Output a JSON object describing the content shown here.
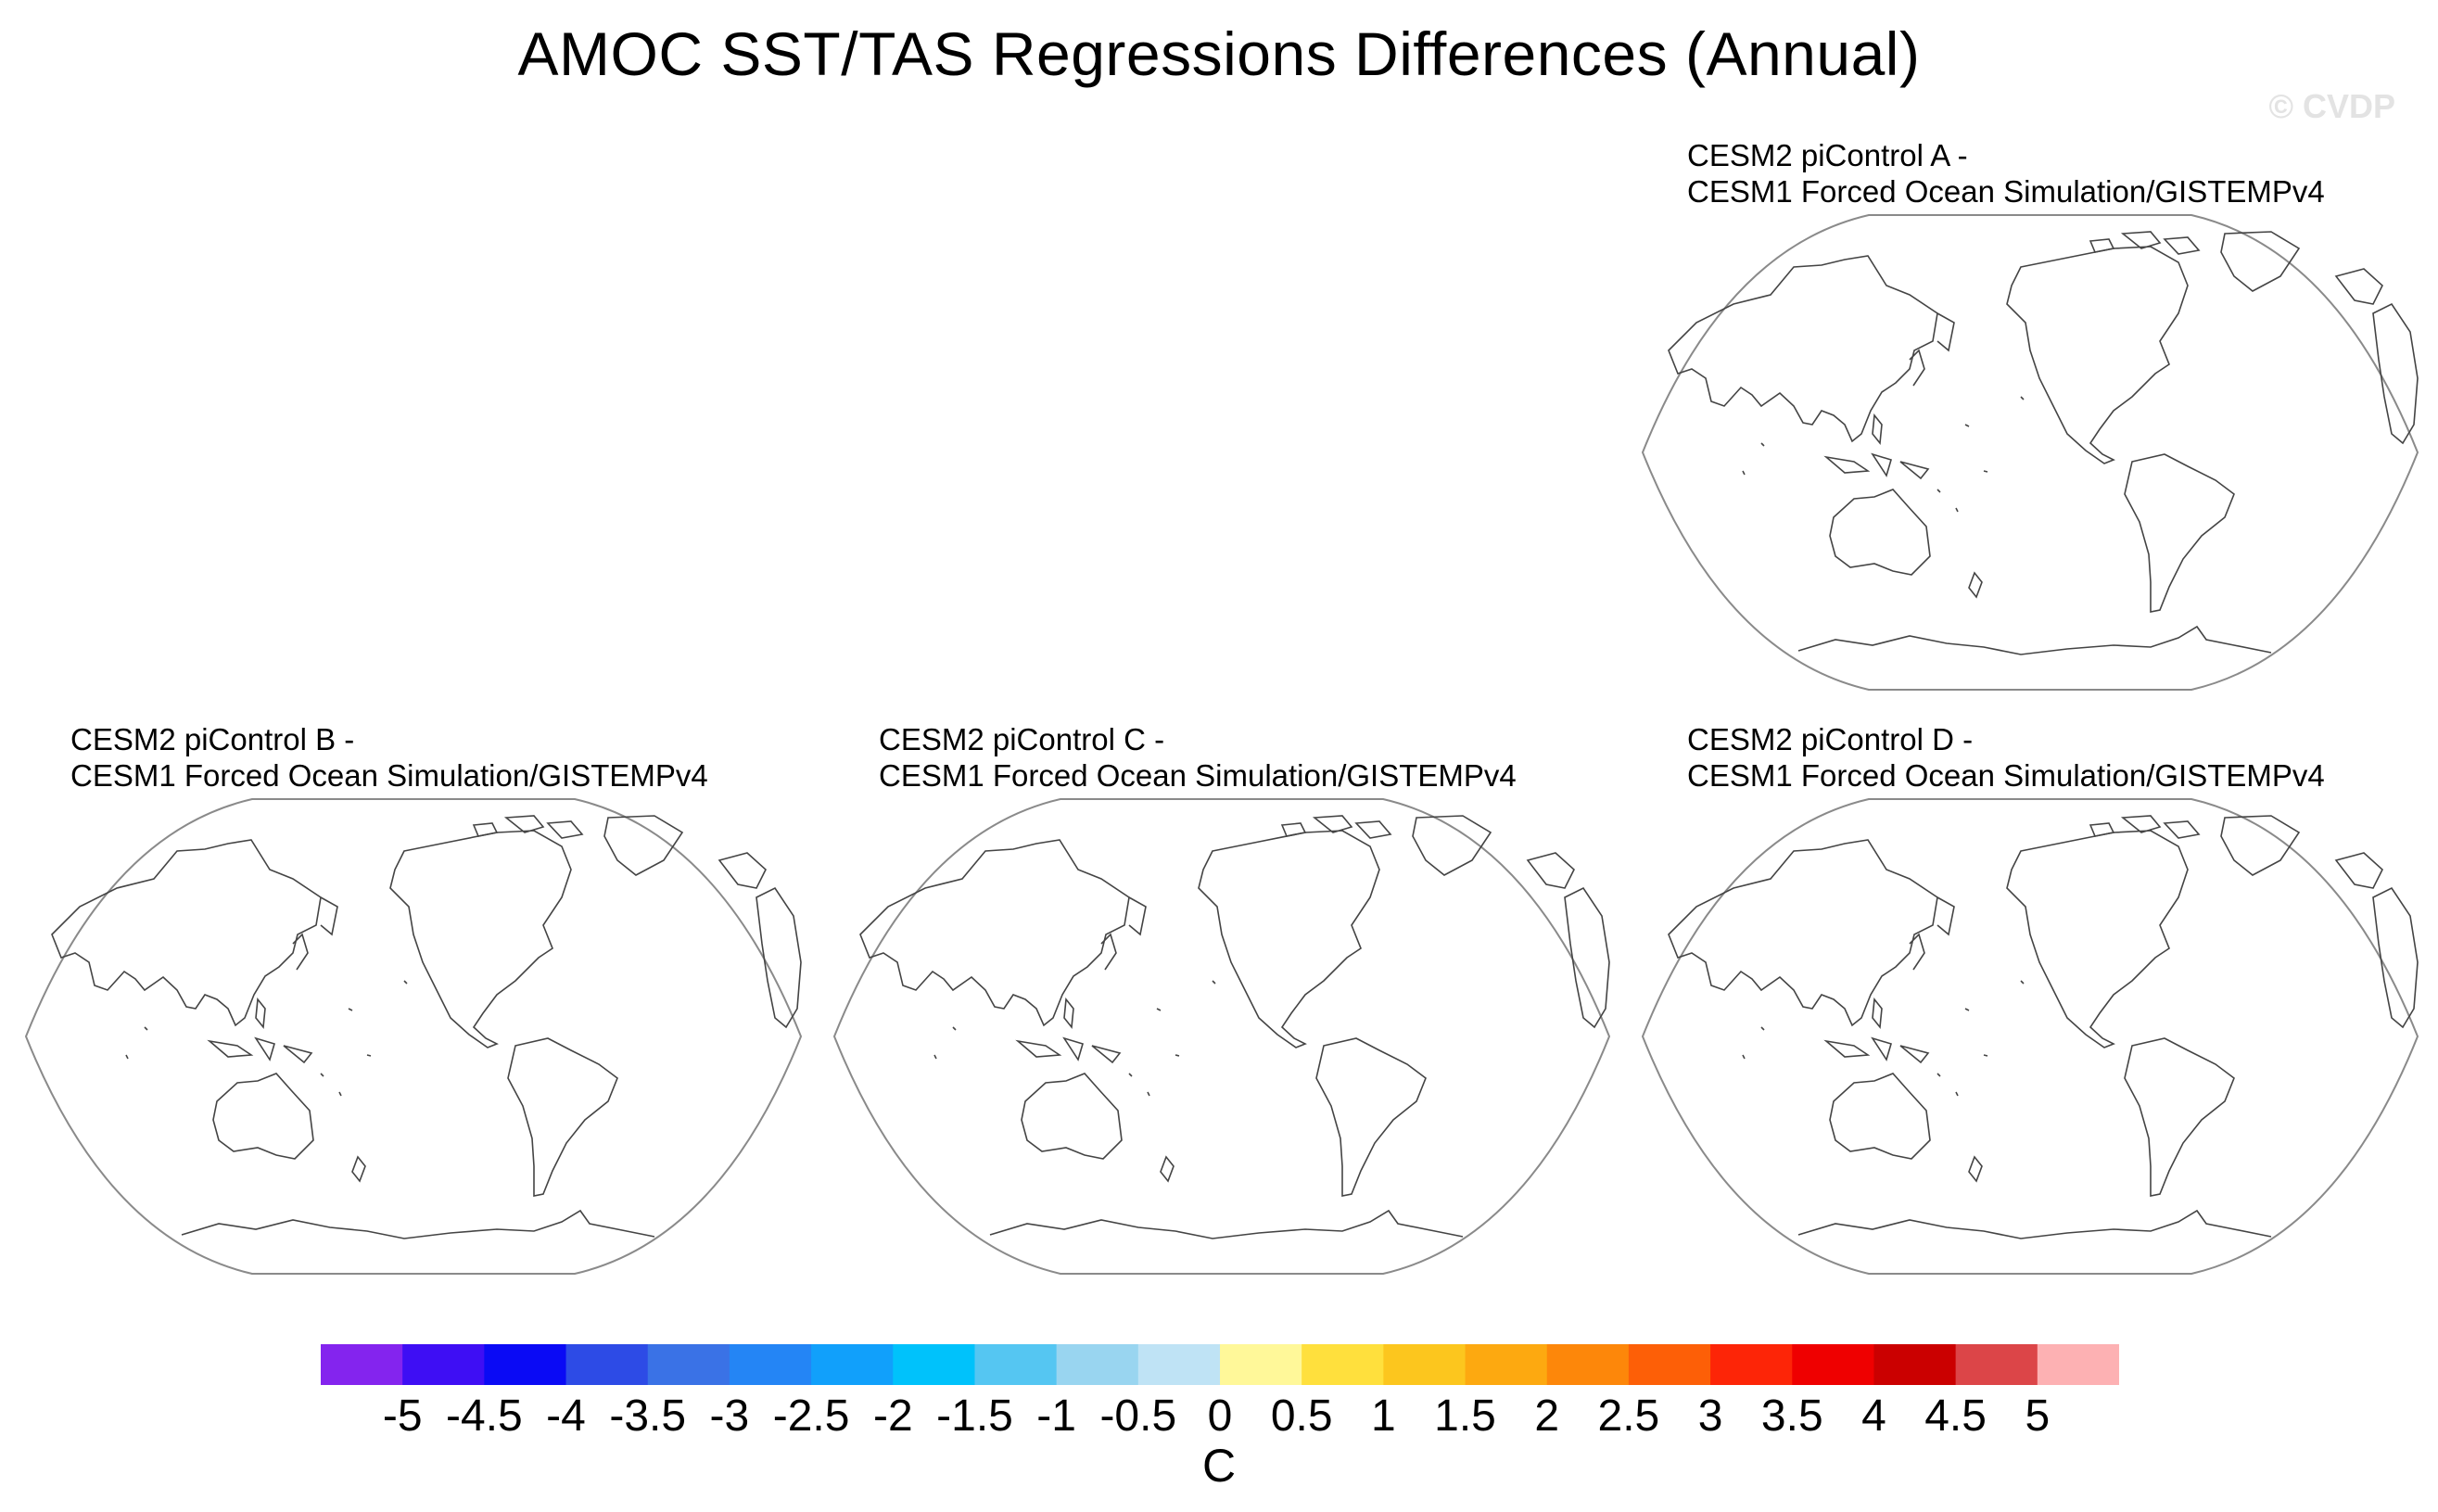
{
  "title": "AMOC SST/TAS Regressions Differences (Annual)",
  "watermark": "© CVDP",
  "panels": [
    {
      "id": "A",
      "line1": "CESM2 piControl A -",
      "line2": "CESM1 Forced Ocean Simulation/GISTEMPv4"
    },
    {
      "id": "B",
      "line1": "CESM2 piControl B -",
      "line2": "CESM1 Forced Ocean Simulation/GISTEMPv4"
    },
    {
      "id": "C",
      "line1": "CESM2 piControl C -",
      "line2": "CESM1 Forced Ocean Simulation/GISTEMPv4"
    },
    {
      "id": "D",
      "line1": "CESM2 piControl D -",
      "line2": "CESM1 Forced Ocean Simulation/GISTEMPv4"
    }
  ],
  "colorbar": {
    "unit": "C",
    "labels": [
      "-5",
      "-4.5",
      "-4",
      "-3.5",
      "-3",
      "-2.5",
      "-2",
      "-1.5",
      "-1",
      "-0.5",
      "0",
      "0.5",
      "1",
      "1.5",
      "2",
      "2.5",
      "3",
      "3.5",
      "4",
      "4.5",
      "5"
    ],
    "colors": [
      "#8424ee",
      "#3e0ef4",
      "#0a0af5",
      "#2d4be6",
      "#3a72e6",
      "#2485f5",
      "#11a0fb",
      "#00c2fb",
      "#55c6f2",
      "#99d5f0",
      "#bfe3f5",
      "#fff899",
      "#ffe03d",
      "#fcc61e",
      "#fda910",
      "#fd870a",
      "#fd5f07",
      "#fd2507",
      "#ef0000",
      "#cb0000",
      "#dc4548",
      "#fdb1b3"
    ]
  }
}
